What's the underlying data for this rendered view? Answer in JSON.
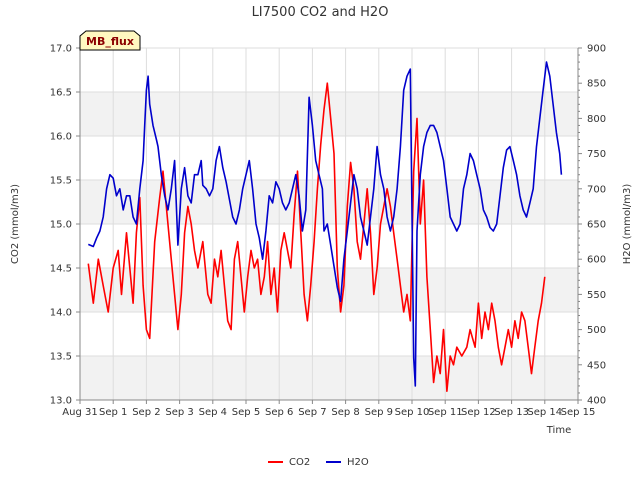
{
  "chart_data": {
    "type": "line",
    "title": "LI7500 CO2 and H2O",
    "tag": "MB_flux",
    "xlabel": "Time",
    "ylabel": "CO2 (mmol/m3)",
    "y2label": "H2O (mmol/m3)",
    "grid": true,
    "legend_position": "bottom-center",
    "x_ticks": [
      "Aug 31",
      "Sep 1",
      "Sep 2",
      "Sep 3",
      "Sep 4",
      "Sep 5",
      "Sep 6",
      "Sep 7",
      "Sep 8",
      "Sep 9",
      "Sep 10",
      "Sep 11",
      "Sep 12",
      "Sep 13",
      "Sep 14",
      "Sep 15"
    ],
    "xlim": [
      0,
      15
    ],
    "ylim": [
      13.0,
      17.0
    ],
    "y_ticks": [
      "13.0",
      "13.5",
      "14.0",
      "14.5",
      "15.0",
      "15.5",
      "16.0",
      "16.5",
      "17.0"
    ],
    "y2lim": [
      400,
      900
    ],
    "y2_ticks": [
      "400",
      "450",
      "500",
      "550",
      "600",
      "650",
      "700",
      "750",
      "800",
      "850",
      "900"
    ],
    "series": [
      {
        "name": "CO2",
        "axis": "left",
        "color": "#ff0000",
        "points": [
          [
            0.25,
            14.55
          ],
          [
            0.4,
            14.1
          ],
          [
            0.55,
            14.6
          ],
          [
            0.7,
            14.3
          ],
          [
            0.85,
            14.0
          ],
          [
            1.0,
            14.5
          ],
          [
            1.15,
            14.7
          ],
          [
            1.25,
            14.2
          ],
          [
            1.4,
            14.9
          ],
          [
            1.5,
            14.5
          ],
          [
            1.6,
            14.1
          ],
          [
            1.7,
            14.9
          ],
          [
            1.8,
            15.3
          ],
          [
            1.9,
            14.3
          ],
          [
            2.0,
            13.8
          ],
          [
            2.1,
            13.7
          ],
          [
            2.25,
            14.8
          ],
          [
            2.4,
            15.3
          ],
          [
            2.5,
            15.6
          ],
          [
            2.6,
            15.2
          ],
          [
            2.7,
            14.8
          ],
          [
            2.85,
            14.2
          ],
          [
            2.95,
            13.8
          ],
          [
            3.05,
            14.2
          ],
          [
            3.15,
            14.9
          ],
          [
            3.25,
            15.2
          ],
          [
            3.35,
            15.0
          ],
          [
            3.45,
            14.7
          ],
          [
            3.55,
            14.5
          ],
          [
            3.7,
            14.8
          ],
          [
            3.85,
            14.2
          ],
          [
            3.95,
            14.1
          ],
          [
            4.05,
            14.6
          ],
          [
            4.15,
            14.4
          ],
          [
            4.25,
            14.7
          ],
          [
            4.35,
            14.3
          ],
          [
            4.45,
            13.9
          ],
          [
            4.55,
            13.8
          ],
          [
            4.65,
            14.6
          ],
          [
            4.75,
            14.8
          ],
          [
            4.85,
            14.4
          ],
          [
            4.95,
            14.0
          ],
          [
            5.05,
            14.4
          ],
          [
            5.15,
            14.7
          ],
          [
            5.25,
            14.5
          ],
          [
            5.35,
            14.6
          ],
          [
            5.45,
            14.2
          ],
          [
            5.55,
            14.4
          ],
          [
            5.65,
            14.8
          ],
          [
            5.75,
            14.2
          ],
          [
            5.85,
            14.5
          ],
          [
            5.95,
            14.0
          ],
          [
            6.05,
            14.7
          ],
          [
            6.15,
            14.9
          ],
          [
            6.25,
            14.7
          ],
          [
            6.35,
            14.5
          ],
          [
            6.45,
            15.1
          ],
          [
            6.55,
            15.6
          ],
          [
            6.65,
            14.9
          ],
          [
            6.75,
            14.2
          ],
          [
            6.85,
            13.9
          ],
          [
            6.95,
            14.3
          ],
          [
            7.05,
            14.8
          ],
          [
            7.15,
            15.4
          ],
          [
            7.25,
            15.9
          ],
          [
            7.35,
            16.3
          ],
          [
            7.45,
            16.6
          ],
          [
            7.55,
            16.2
          ],
          [
            7.65,
            15.8
          ],
          [
            7.75,
            14.5
          ],
          [
            7.85,
            14.0
          ],
          [
            7.95,
            14.3
          ],
          [
            8.05,
            15.2
          ],
          [
            8.15,
            15.7
          ],
          [
            8.25,
            15.4
          ],
          [
            8.35,
            14.8
          ],
          [
            8.45,
            14.6
          ],
          [
            8.55,
            15.0
          ],
          [
            8.65,
            15.4
          ],
          [
            8.75,
            14.9
          ],
          [
            8.85,
            14.2
          ],
          [
            8.95,
            14.5
          ],
          [
            9.05,
            15.0
          ],
          [
            9.15,
            15.2
          ],
          [
            9.25,
            15.4
          ],
          [
            9.35,
            15.2
          ],
          [
            9.45,
            14.9
          ],
          [
            9.55,
            14.6
          ],
          [
            9.65,
            14.3
          ],
          [
            9.75,
            14.0
          ],
          [
            9.85,
            14.2
          ],
          [
            9.95,
            13.9
          ],
          [
            10.05,
            15.6
          ],
          [
            10.15,
            16.2
          ],
          [
            10.25,
            15.0
          ],
          [
            10.35,
            15.5
          ],
          [
            10.45,
            14.4
          ],
          [
            10.55,
            13.8
          ],
          [
            10.65,
            13.2
          ],
          [
            10.75,
            13.5
          ],
          [
            10.85,
            13.3
          ],
          [
            10.95,
            13.8
          ],
          [
            11.05,
            13.1
          ],
          [
            11.15,
            13.5
          ],
          [
            11.25,
            13.4
          ],
          [
            11.35,
            13.6
          ],
          [
            11.5,
            13.5
          ],
          [
            11.65,
            13.6
          ],
          [
            11.75,
            13.8
          ],
          [
            11.9,
            13.6
          ],
          [
            12.0,
            14.1
          ],
          [
            12.1,
            13.7
          ],
          [
            12.2,
            14.0
          ],
          [
            12.3,
            13.8
          ],
          [
            12.4,
            14.1
          ],
          [
            12.5,
            13.9
          ],
          [
            12.6,
            13.6
          ],
          [
            12.7,
            13.4
          ],
          [
            12.8,
            13.6
          ],
          [
            12.9,
            13.8
          ],
          [
            13.0,
            13.6
          ],
          [
            13.1,
            13.9
          ],
          [
            13.2,
            13.7
          ],
          [
            13.3,
            14.0
          ],
          [
            13.4,
            13.9
          ],
          [
            13.5,
            13.6
          ],
          [
            13.6,
            13.3
          ],
          [
            13.7,
            13.6
          ],
          [
            13.8,
            13.9
          ],
          [
            13.9,
            14.1
          ],
          [
            14.0,
            14.4
          ]
        ]
      },
      {
        "name": "H2O",
        "axis": "right",
        "color": "#0000cc",
        "points": [
          [
            0.25,
            621
          ],
          [
            0.4,
            618
          ],
          [
            0.5,
            630
          ],
          [
            0.6,
            640
          ],
          [
            0.7,
            660
          ],
          [
            0.8,
            700
          ],
          [
            0.9,
            720
          ],
          [
            1.0,
            715
          ],
          [
            1.1,
            690
          ],
          [
            1.2,
            700
          ],
          [
            1.3,
            670
          ],
          [
            1.4,
            690
          ],
          [
            1.5,
            690
          ],
          [
            1.6,
            660
          ],
          [
            1.7,
            650
          ],
          [
            1.8,
            700
          ],
          [
            1.9,
            740
          ],
          [
            1.95,
            790
          ],
          [
            2.0,
            840
          ],
          [
            2.05,
            860
          ],
          [
            2.1,
            820
          ],
          [
            2.2,
            790
          ],
          [
            2.3,
            770
          ],
          [
            2.35,
            760
          ],
          [
            2.45,
            720
          ],
          [
            2.55,
            690
          ],
          [
            2.65,
            670
          ],
          [
            2.75,
            700
          ],
          [
            2.85,
            740
          ],
          [
            2.95,
            620
          ],
          [
            3.05,
            700
          ],
          [
            3.15,
            730
          ],
          [
            3.25,
            690
          ],
          [
            3.35,
            680
          ],
          [
            3.45,
            720
          ],
          [
            3.55,
            720
          ],
          [
            3.65,
            740
          ],
          [
            3.7,
            705
          ],
          [
            3.8,
            700
          ],
          [
            3.9,
            690
          ],
          [
            4.0,
            700
          ],
          [
            4.1,
            740
          ],
          [
            4.2,
            760
          ],
          [
            4.3,
            730
          ],
          [
            4.4,
            710
          ],
          [
            4.5,
            685
          ],
          [
            4.6,
            660
          ],
          [
            4.7,
            650
          ],
          [
            4.8,
            670
          ],
          [
            4.9,
            700
          ],
          [
            5.0,
            720
          ],
          [
            5.1,
            740
          ],
          [
            5.2,
            700
          ],
          [
            5.3,
            650
          ],
          [
            5.4,
            630
          ],
          [
            5.5,
            600
          ],
          [
            5.6,
            640
          ],
          [
            5.7,
            690
          ],
          [
            5.8,
            680
          ],
          [
            5.9,
            710
          ],
          [
            6.0,
            700
          ],
          [
            6.1,
            680
          ],
          [
            6.2,
            670
          ],
          [
            6.3,
            680
          ],
          [
            6.4,
            700
          ],
          [
            6.5,
            720
          ],
          [
            6.6,
            690
          ],
          [
            6.7,
            640
          ],
          [
            6.8,
            670
          ],
          [
            6.9,
            830
          ],
          [
            7.0,
            790
          ],
          [
            7.1,
            740
          ],
          [
            7.2,
            720
          ],
          [
            7.3,
            700
          ],
          [
            7.35,
            640
          ],
          [
            7.45,
            650
          ],
          [
            7.55,
            620
          ],
          [
            7.65,
            590
          ],
          [
            7.75,
            560
          ],
          [
            7.85,
            540
          ],
          [
            7.95,
            600
          ],
          [
            8.05,
            640
          ],
          [
            8.15,
            680
          ],
          [
            8.25,
            720
          ],
          [
            8.35,
            700
          ],
          [
            8.45,
            660
          ],
          [
            8.55,
            640
          ],
          [
            8.65,
            620
          ],
          [
            8.75,
            660
          ],
          [
            8.85,
            700
          ],
          [
            8.95,
            760
          ],
          [
            9.05,
            720
          ],
          [
            9.15,
            700
          ],
          [
            9.25,
            660
          ],
          [
            9.35,
            640
          ],
          [
            9.45,
            660
          ],
          [
            9.55,
            700
          ],
          [
            9.65,
            760
          ],
          [
            9.75,
            840
          ],
          [
            9.85,
            860
          ],
          [
            9.95,
            870
          ],
          [
            10.05,
            460
          ],
          [
            10.1,
            420
          ],
          [
            10.15,
            640
          ],
          [
            10.25,
            720
          ],
          [
            10.35,
            760
          ],
          [
            10.45,
            780
          ],
          [
            10.55,
            790
          ],
          [
            10.65,
            790
          ],
          [
            10.75,
            780
          ],
          [
            10.85,
            760
          ],
          [
            10.95,
            740
          ],
          [
            11.05,
            700
          ],
          [
            11.15,
            660
          ],
          [
            11.25,
            650
          ],
          [
            11.35,
            640
          ],
          [
            11.45,
            650
          ],
          [
            11.55,
            700
          ],
          [
            11.65,
            720
          ],
          [
            11.75,
            750
          ],
          [
            11.85,
            740
          ],
          [
            11.95,
            720
          ],
          [
            12.05,
            700
          ],
          [
            12.15,
            670
          ],
          [
            12.25,
            660
          ],
          [
            12.35,
            645
          ],
          [
            12.45,
            640
          ],
          [
            12.55,
            650
          ],
          [
            12.65,
            690
          ],
          [
            12.75,
            730
          ],
          [
            12.85,
            755
          ],
          [
            12.95,
            760
          ],
          [
            13.05,
            740
          ],
          [
            13.15,
            720
          ],
          [
            13.25,
            690
          ],
          [
            13.35,
            670
          ],
          [
            13.45,
            660
          ],
          [
            13.55,
            680
          ],
          [
            13.65,
            700
          ],
          [
            13.75,
            760
          ],
          [
            13.85,
            800
          ],
          [
            13.95,
            840
          ],
          [
            14.05,
            880
          ],
          [
            14.15,
            860
          ],
          [
            14.25,
            820
          ],
          [
            14.35,
            780
          ],
          [
            14.45,
            750
          ],
          [
            14.5,
            720
          ]
        ]
      }
    ]
  }
}
